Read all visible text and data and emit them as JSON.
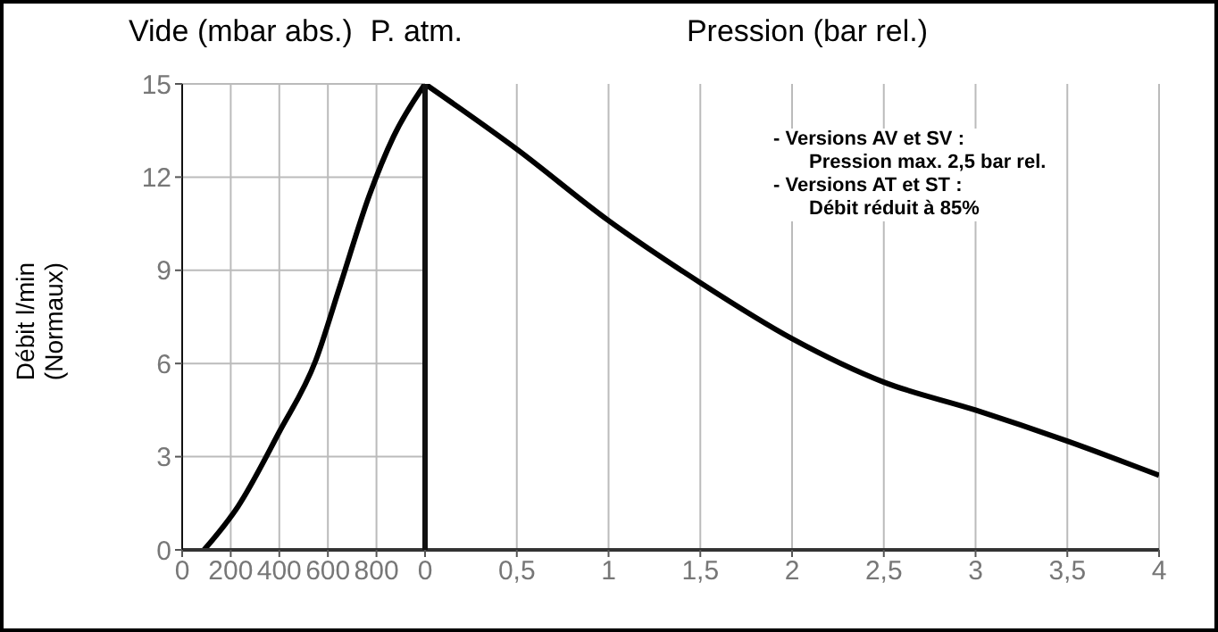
{
  "chart_data": [
    {
      "type": "line",
      "xlabel": "Vide (mbar abs.)",
      "ylabel": "Débit l/min\n(Normaux)",
      "annotations": [
        "P. atm."
      ],
      "x": [
        90,
        230,
        400,
        550,
        650,
        770,
        870,
        1000
      ],
      "values": [
        0,
        1.4,
        3.8,
        6.1,
        8.5,
        11.4,
        13.3,
        15
      ],
      "color": "#000000",
      "xlim": [
        0,
        1000
      ],
      "xticks": [
        0,
        200,
        400,
        600,
        800
      ],
      "ylim": [
        0,
        15
      ],
      "yticks": [
        0,
        3,
        6,
        9,
        12,
        15
      ],
      "grid": true,
      "marker": "none",
      "line_style": "solid"
    },
    {
      "type": "line",
      "xlabel": "Pression (bar rel.)",
      "annotations": [
        "- Versions AV et SV :",
        "Pression max. 2,5 bar rel.",
        "- Versions AT et ST :",
        "Débit réduit à 85%"
      ],
      "x": [
        0,
        0.5,
        1,
        1.5,
        2,
        2.5,
        3,
        3.5,
        4
      ],
      "values": [
        15,
        12.9,
        10.6,
        8.6,
        6.8,
        5.4,
        4.5,
        3.5,
        2.4
      ],
      "color": "#000000",
      "xlim": [
        0,
        4
      ],
      "xticks": [
        0,
        {
          "value": 0.5,
          "label": "0,5"
        },
        1,
        {
          "value": 1.5,
          "label": "1,5"
        },
        2,
        {
          "value": 2.5,
          "label": "2,5"
        },
        3,
        {
          "value": 3.5,
          "label": "3,5"
        },
        4
      ],
      "ylim": [
        0,
        15
      ],
      "yticks": [
        0,
        3,
        6,
        9,
        12,
        15
      ],
      "grid": true,
      "tick_labels": "x",
      "marker": "none",
      "line_style": "solid"
    }
  ]
}
